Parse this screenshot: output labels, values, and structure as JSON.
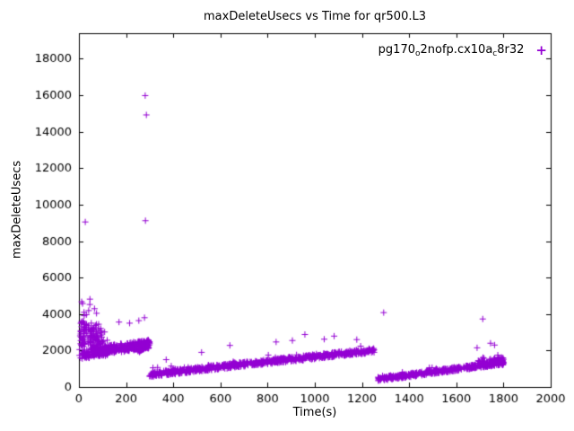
{
  "chart_data": {
    "type": "scatter",
    "title": "maxDeleteUsecs vs Time for qr500.L3",
    "xlabel": "Time(s)",
    "ylabel": "maxDeleteUsecs",
    "xlim": [
      0,
      2000
    ],
    "ylim": [
      0,
      19400
    ],
    "xticks": [
      0,
      200,
      400,
      600,
      800,
      1000,
      1200,
      1400,
      1600,
      1800,
      2000
    ],
    "yticks": [
      0,
      2000,
      4000,
      6000,
      8000,
      10000,
      12000,
      14000,
      16000,
      18000
    ],
    "grid": false,
    "legend": {
      "label": "pg170o2nofp.cx10ac8r32",
      "position": "top-right-inside",
      "marker_glyph": "+",
      "parts": [
        {
          "t": "pg170",
          "sub": false
        },
        {
          "t": "o",
          "sub": true
        },
        {
          "t": "2nofp.cx10a",
          "sub": false
        },
        {
          "t": "c",
          "sub": true
        },
        {
          "t": "8r32",
          "sub": false
        }
      ]
    },
    "marker": {
      "shape": "plus",
      "color": "#9400D3",
      "size": 7
    },
    "seed": 1337,
    "clusters": [
      {
        "count": 150,
        "x": [
          1,
          130
        ],
        "y0": 1750,
        "y1": 1950,
        "noise": 220,
        "burst": {
          "chance": 0.5,
          "max": 5200,
          "decay": 0.85
        }
      },
      {
        "count": 90,
        "x": [
          4,
          95
        ],
        "y0": 3000,
        "y1": 2550,
        "noise": 700,
        "burst": {
          "chance": 0.4,
          "max": 3200,
          "decay": 1
        }
      },
      {
        "count": 280,
        "x": [
          60,
          300
        ],
        "y0": 1950,
        "y1": 2350,
        "noise": 230
      },
      {
        "count": 70,
        "x": [
          250,
          300
        ],
        "y0": 2050,
        "y1": 2450,
        "noise": 190
      },
      {
        "count": 760,
        "x": [
          300,
          1255
        ],
        "y0": 680,
        "y1": 2020,
        "noise": 130,
        "burst": {
          "chance": 0.06,
          "max": 650,
          "decay": 0
        }
      },
      {
        "count": 430,
        "x": [
          1268,
          1800
        ],
        "y0": 430,
        "y1": 1330,
        "noise": 110,
        "burst": {
          "chance": 0.06,
          "max": 420,
          "decay": 0
        }
      },
      {
        "count": 70,
        "x": [
          1690,
          1800
        ],
        "y0": 1250,
        "y1": 1480,
        "noise": 200,
        "burst": {
          "chance": 0.25,
          "max": 650,
          "decay": 0
        }
      }
    ],
    "outliers": [
      [
        281,
        15980
      ],
      [
        286,
        14920
      ],
      [
        282,
        9120
      ],
      [
        27,
        9050
      ],
      [
        278,
        3800
      ],
      [
        170,
        3560
      ],
      [
        215,
        3500
      ],
      [
        254,
        3640
      ],
      [
        1292,
        4080
      ],
      [
        1712,
        3730
      ],
      [
        958,
        2880
      ],
      [
        1082,
        2790
      ],
      [
        1178,
        2600
      ],
      [
        836,
        2470
      ],
      [
        905,
        2550
      ],
      [
        1040,
        2620
      ],
      [
        1745,
        2400
      ],
      [
        1762,
        2300
      ],
      [
        1688,
        2150
      ],
      [
        640,
        2280
      ],
      [
        520,
        1900
      ],
      [
        370,
        1500
      ]
    ]
  }
}
